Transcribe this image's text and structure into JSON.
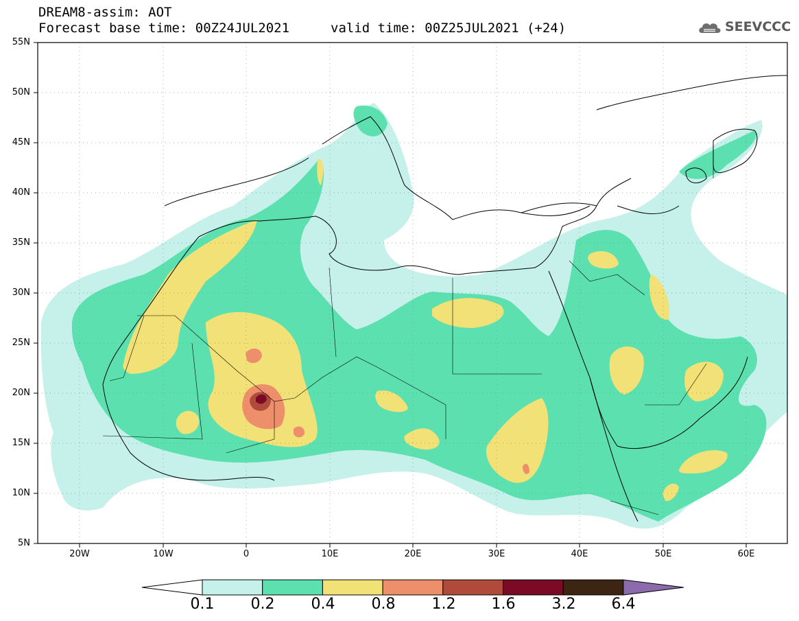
{
  "header": {
    "title": "DREAM8-assim: AOT",
    "base_time": "Forecast base time: 00Z24JUL2021",
    "valid_time": "valid time: 00Z25JUL2021 (+24)"
  },
  "logo": {
    "text": "SEEVCCC",
    "icon": "cloud-icon"
  },
  "map": {
    "lat_labels": [
      "55N",
      "50N",
      "45N",
      "40N",
      "35N",
      "30N",
      "25N",
      "20N",
      "15N",
      "10N",
      "5N"
    ],
    "lon_labels": [
      "20W",
      "10W",
      "0",
      "10E",
      "20E",
      "30E",
      "40E",
      "50E",
      "60E"
    ],
    "lon_range": [
      -25,
      65
    ],
    "lat_range": [
      5,
      55
    ],
    "gridlines": "dotted"
  },
  "colorbar": {
    "ticks": [
      "0.1",
      "0.2",
      "0.4",
      "0.8",
      "1.2",
      "1.6",
      "3.2",
      "6.4"
    ],
    "colors": [
      "#ffffff",
      "#c6f0ea",
      "#5ce0b0",
      "#f2e176",
      "#ec8f6a",
      "#b04b3c",
      "#7a0a25",
      "#3c2512",
      "#8b6bab"
    ]
  }
}
